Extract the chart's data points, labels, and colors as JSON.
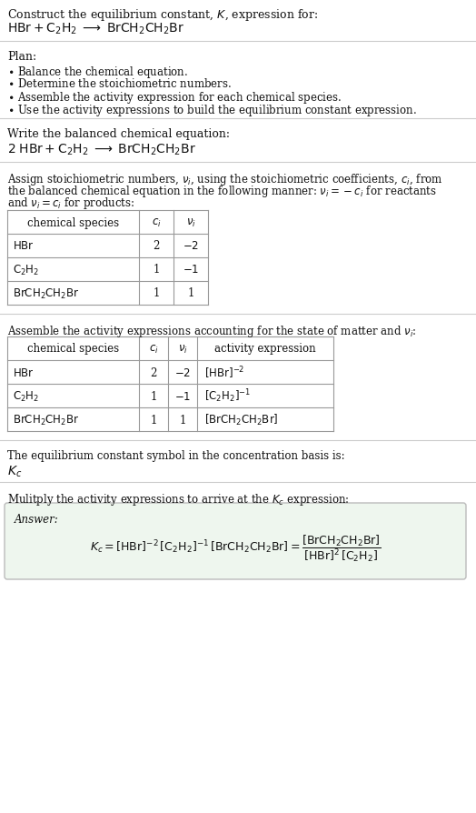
{
  "bg_color": "#ffffff",
  "text_color": "#111111",
  "title_line1": "Construct the equilibrium constant, $K$, expression for:",
  "title_line2": "$\\mathrm{HBr + C_2H_2 \\;\\longrightarrow\\; BrCH_2CH_2Br}$",
  "plan_title": "Plan:",
  "plan_bullets": [
    "Balance the chemical equation.",
    "Determine the stoichiometric numbers.",
    "Assemble the activity expression for each chemical species.",
    "Use the activity expressions to build the equilibrium constant expression."
  ],
  "balanced_label": "Write the balanced chemical equation:",
  "balanced_eq": "$\\mathrm{2\\;HBr + C_2H_2 \\;\\longrightarrow\\; BrCH_2CH_2Br}$",
  "stoich_lines": [
    "Assign stoichiometric numbers, $\\nu_i$, using the stoichiometric coefficients, $c_i$, from",
    "the balanced chemical equation in the following manner: $\\nu_i = -c_i$ for reactants",
    "and $\\nu_i = c_i$ for products:"
  ],
  "table1_headers": [
    "chemical species",
    "$c_i$",
    "$\\nu_i$"
  ],
  "table1_rows": [
    [
      "$\\mathrm{HBr}$",
      "2",
      "$-2$"
    ],
    [
      "$\\mathrm{C_2H_2}$",
      "1",
      "$-1$"
    ],
    [
      "$\\mathrm{BrCH_2CH_2Br}$",
      "1",
      "1"
    ]
  ],
  "activity_label": "Assemble the activity expressions accounting for the state of matter and $\\nu_i$:",
  "table2_headers": [
    "chemical species",
    "$c_i$",
    "$\\nu_i$",
    "activity expression"
  ],
  "table2_rows": [
    [
      "$\\mathrm{HBr}$",
      "2",
      "$-2$",
      "$[\\mathrm{HBr}]^{-2}$"
    ],
    [
      "$\\mathrm{C_2H_2}$",
      "1",
      "$-1$",
      "$[\\mathrm{C_2H_2}]^{-1}$"
    ],
    [
      "$\\mathrm{BrCH_2CH_2Br}$",
      "1",
      "1",
      "$[\\mathrm{BrCH_2CH_2Br}]$"
    ]
  ],
  "kc_label": "The equilibrium constant symbol in the concentration basis is:",
  "kc_symbol": "$K_c$",
  "multiply_label": "Mulitply the activity expressions to arrive at the $K_c$ expression:",
  "answer_label": "Answer:",
  "kc_expr": "$K_c = [\\mathrm{HBr}]^{-2}\\,[\\mathrm{C_2H_2}]^{-1}\\,[\\mathrm{BrCH_2CH_2Br}] = \\dfrac{[\\mathrm{BrCH_2CH_2Br}]}{[\\mathrm{HBr}]^2\\,[\\mathrm{C_2H_2}]}$",
  "answer_bg": "#eef6ee",
  "answer_border": "#bbbbbb",
  "table_line_color": "#999999",
  "sep_line_color": "#cccccc",
  "fs": 9.0,
  "fs_small": 8.5,
  "fs_large": 10.0
}
